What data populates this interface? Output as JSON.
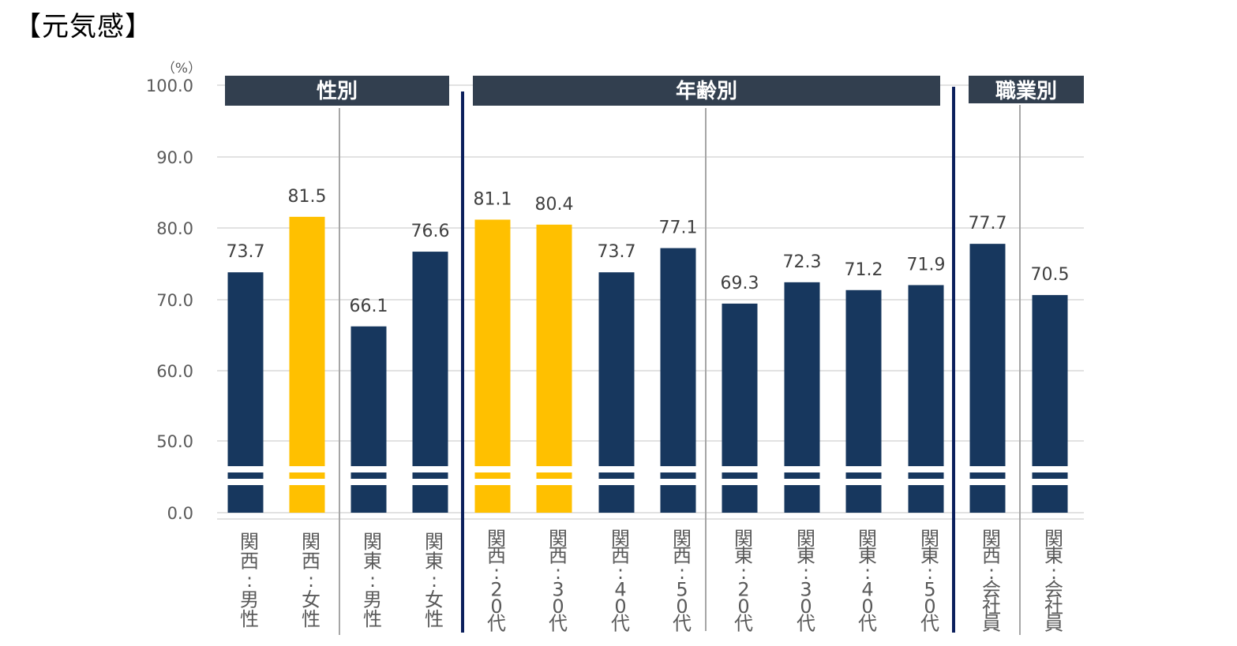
{
  "title": "【元気感】",
  "chart_data": {
    "type": "bar",
    "title": "【元気感】",
    "ylabel": "（%）",
    "xlabel": "",
    "ylim": [
      0,
      100
    ],
    "axis_break": true,
    "yticks": [
      "100.0",
      "90.0",
      "80.0",
      "70.0",
      "60.0",
      "50.0",
      "0.0"
    ],
    "groups": [
      {
        "label": "性別",
        "start": 0,
        "end": 3
      },
      {
        "label": "年齢別",
        "start": 4,
        "end": 11
      },
      {
        "label": "職業別",
        "start": 12,
        "end": 13
      }
    ],
    "categories": [
      "関西:男性",
      "関西:女性",
      "関東:男性",
      "関東:女性",
      "関西:20代",
      "関西:30代",
      "関西:40代",
      "関西:50代",
      "関東:20代",
      "関東:30代",
      "関東:40代",
      "関東:50代",
      "関西:会社員",
      "関東:会社員"
    ],
    "values": [
      73.7,
      81.5,
      66.1,
      76.6,
      81.1,
      80.4,
      73.7,
      77.1,
      69.3,
      72.3,
      71.2,
      71.9,
      77.7,
      70.5
    ],
    "value_labels": [
      "73.7",
      "81.5",
      "66.1",
      "76.6",
      "81.1",
      "80.4",
      "73.7",
      "77.1",
      "69.3",
      "72.3",
      "71.2",
      "71.9",
      "77.7",
      "70.5"
    ],
    "highlight": [
      false,
      true,
      false,
      false,
      true,
      true,
      false,
      false,
      false,
      false,
      false,
      false,
      false,
      false
    ],
    "colors": {
      "bar": "#17375e",
      "highlight": "#ffc000",
      "header": "#323f4f",
      "divider": "#0b1f5c",
      "grid": "#d9d9d9",
      "subdivider": "#a6a6a6"
    }
  }
}
